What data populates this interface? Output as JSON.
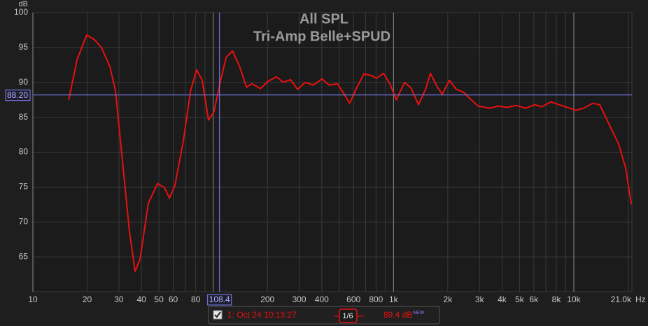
{
  "chart_data": {
    "type": "line",
    "title": "All SPL",
    "subtitle": "Tri-Amp Belle+SPUD",
    "y_label": "dB",
    "x_unit": "Hz",
    "log_x": true,
    "grid": true,
    "x": [
      15.8,
      17.6,
      19.9,
      22,
      24,
      26.7,
      28.7,
      31.4,
      34.3,
      36.9,
      39.3,
      43.7,
      49.1,
      53.7,
      57.2,
      61.3,
      68.4,
      74.9,
      81,
      86.9,
      94.2,
      101,
      110,
      118,
      128,
      140,
      153,
      164,
      183,
      200,
      224,
      245,
      268,
      294,
      324,
      359,
      401,
      440,
      489,
      533,
      571,
      627,
      685,
      750,
      805,
      880,
      955,
      1036,
      1152,
      1250,
      1376,
      1506,
      1602,
      1753,
      1865,
      2040,
      2232,
      2442,
      2670,
      2948,
      3427,
      3805,
      4265,
      4782,
      5420,
      6074,
      6647,
      7457,
      8302,
      9243,
      10290,
      11350,
      12730,
      13920,
      15490,
      17710,
      19400,
      20840
    ],
    "series": [
      {
        "name": "1: Oct 24 10:13:27",
        "color": "#e81010",
        "values": [
          87.5,
          93.3,
          96.8,
          96.1,
          95.0,
          92.3,
          88.8,
          78.7,
          68.7,
          62.9,
          64.7,
          72.7,
          75.5,
          74.9,
          73.4,
          75.2,
          81.7,
          88.8,
          91.8,
          90.3,
          84.6,
          85.8,
          90.3,
          93.6,
          94.5,
          92.3,
          89.3,
          89.8,
          89.1,
          90.1,
          90.8,
          90.0,
          90.4,
          89.0,
          90.0,
          89.6,
          90.5,
          89.6,
          89.8,
          88.3,
          87.0,
          89.3,
          91.2,
          91.0,
          90.6,
          91.3,
          89.8,
          87.5,
          90.0,
          89.2,
          86.8,
          89.0,
          91.3,
          89.3,
          88.3,
          90.3,
          89.0,
          88.6,
          87.6,
          86.6,
          86.3,
          86.6,
          86.4,
          86.7,
          86.3,
          86.8,
          86.5,
          87.2,
          86.8,
          86.4,
          86.0,
          86.3,
          87.0,
          86.8,
          84.3,
          81.2,
          77.7,
          72.5
        ]
      }
    ],
    "xlim": [
      10,
      21000
    ],
    "ylim": [
      60,
      100
    ],
    "xticks": [
      10,
      20,
      30,
      40,
      50,
      60,
      80,
      200,
      300,
      400,
      600,
      800,
      {
        "value": 1000,
        "label": "1k"
      },
      {
        "value": 2000,
        "label": "2k"
      },
      {
        "value": 3000,
        "label": "3k"
      },
      {
        "value": 4000,
        "label": "4k"
      },
      {
        "value": 5000,
        "label": "5k"
      },
      {
        "value": 6000,
        "label": "6k"
      },
      {
        "value": 8000,
        "label": "8k"
      },
      {
        "value": 10000,
        "label": "10k"
      },
      {
        "value": 21000,
        "label": "21.0k"
      }
    ],
    "x_minor_ticks": [
      70,
      90,
      100,
      500,
      700,
      900,
      7000,
      9000,
      20000
    ],
    "yticks": [
      65,
      70,
      75,
      80,
      85,
      90,
      95,
      100
    ],
    "cursor": {
      "x": {
        "value": 108.4,
        "label": "108.4"
      },
      "y": {
        "value": 88.2,
        "label": "88.20"
      }
    },
    "legend": {
      "smoothing": "1/6",
      "reading": "89.4 dB",
      "badge": "NEW"
    }
  }
}
